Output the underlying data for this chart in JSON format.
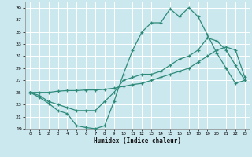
{
  "xlabel": "Humidex (Indice chaleur)",
  "bg_color": "#cce8ef",
  "grid_color": "#ffffff",
  "line_color": "#2e8b7a",
  "xlim": [
    -0.5,
    23.5
  ],
  "ylim": [
    19,
    40
  ],
  "yticks": [
    19,
    21,
    23,
    25,
    27,
    29,
    31,
    33,
    35,
    37,
    39
  ],
  "xticks": [
    0,
    1,
    2,
    3,
    4,
    5,
    6,
    7,
    8,
    9,
    10,
    11,
    12,
    13,
    14,
    15,
    16,
    17,
    18,
    19,
    20,
    21,
    22,
    23
  ],
  "line1_x": [
    0,
    1,
    2,
    3,
    4,
    5,
    6,
    7,
    8,
    9,
    10,
    11,
    12,
    13,
    14,
    15,
    16,
    17,
    18,
    19,
    20,
    21,
    22,
    23
  ],
  "line1_y": [
    25,
    24.2,
    23.2,
    22.0,
    21.5,
    19.5,
    19.2,
    19.0,
    19.5,
    23.5,
    28,
    32,
    35,
    36.5,
    36.5,
    38.8,
    37.5,
    39.0,
    37.5,
    34.5,
    31.5,
    29.0,
    26.5,
    27.0
  ],
  "line2_x": [
    0,
    1,
    2,
    3,
    4,
    5,
    6,
    7,
    8,
    9,
    10,
    11,
    12,
    13,
    14,
    15,
    16,
    17,
    18,
    19,
    20,
    21,
    22,
    23
  ],
  "line2_y": [
    25,
    25.0,
    25.0,
    25.2,
    25.3,
    25.3,
    25.4,
    25.4,
    25.5,
    25.7,
    26.0,
    26.3,
    26.5,
    27.0,
    27.5,
    28.0,
    28.5,
    29.0,
    30.0,
    31.0,
    32.0,
    32.5,
    32.0,
    27.5
  ],
  "line3_x": [
    0,
    1,
    2,
    3,
    4,
    5,
    6,
    7,
    8,
    9,
    10,
    11,
    12,
    13,
    14,
    15,
    16,
    17,
    18,
    19,
    20,
    21,
    22,
    23
  ],
  "line3_y": [
    25,
    24.5,
    23.5,
    23.0,
    22.5,
    22.0,
    22.0,
    22.0,
    23.5,
    25.0,
    27.0,
    27.5,
    28.0,
    28.0,
    28.5,
    29.5,
    30.5,
    31.0,
    32.0,
    34.0,
    33.5,
    32.0,
    29.5,
    27.0
  ]
}
